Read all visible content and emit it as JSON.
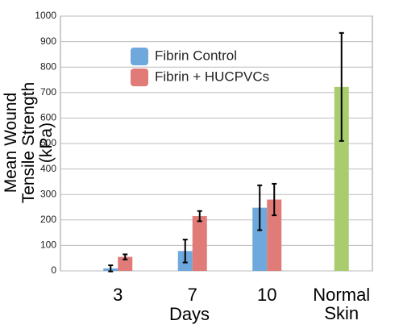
{
  "chart_data": {
    "type": "bar",
    "y_label": "Mean Wound Tensile Strength (kPa)",
    "x_label": "Days",
    "categories": [
      "3",
      "7",
      "10",
      "Normal Skin"
    ],
    "series": [
      {
        "name": "Fibrin Control",
        "color": "#6fa8dc",
        "values": [
          10,
          78,
          248,
          null
        ],
        "errors": [
          12,
          45,
          88,
          null
        ]
      },
      {
        "name": "Fibrin + HUCPVCs",
        "color": "#e07b78",
        "values": [
          55,
          215,
          280,
          null
        ],
        "errors": [
          10,
          20,
          62,
          null
        ]
      },
      {
        "color": "#a9cd6e",
        "values": [
          null,
          null,
          null,
          722
        ],
        "errors": [
          null,
          null,
          null,
          212
        ]
      }
    ],
    "ylim": [
      0,
      1000
    ],
    "yticks": [
      0,
      100,
      200,
      300,
      400,
      500,
      600,
      700,
      800,
      900,
      1000
    ],
    "grid": true
  }
}
